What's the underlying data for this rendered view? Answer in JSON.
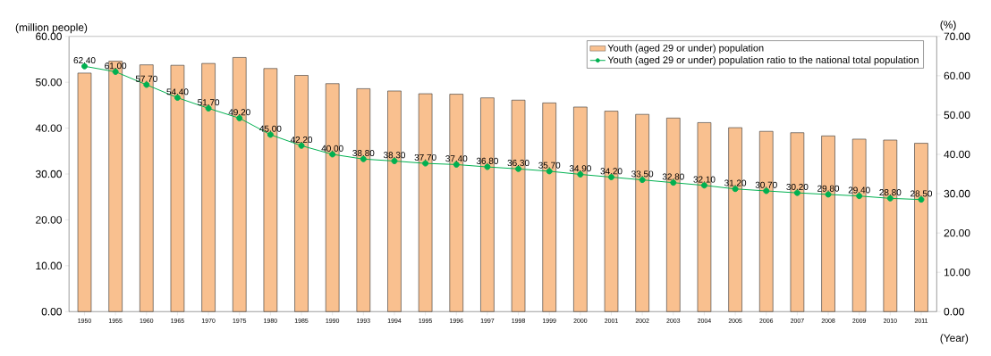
{
  "chart_data": {
    "type": "bar",
    "xlabel": "(Year)",
    "ylabel": "(million people)",
    "y2label": "(%)",
    "categories": [
      "1950",
      "1955",
      "1960",
      "1965",
      "1970",
      "1975",
      "1980",
      "1985",
      "1990",
      "1993",
      "1994",
      "1995",
      "1996",
      "1997",
      "1998",
      "1999",
      "2000",
      "2001",
      "2002",
      "2003",
      "2004",
      "2005",
      "2006",
      "2007",
      "2008",
      "2009",
      "2010",
      "2011"
    ],
    "series": [
      {
        "name": "Youth (aged 29 or under) population",
        "color": "#f9c08f",
        "values": [
          52.0,
          54.6,
          53.8,
          53.7,
          54.1,
          55.4,
          53.0,
          51.5,
          49.7,
          48.6,
          48.1,
          47.5,
          47.4,
          46.6,
          46.1,
          45.5,
          44.6,
          43.7,
          43.0,
          42.2,
          41.2,
          40.1,
          39.3,
          39.0,
          38.3,
          37.6,
          37.4,
          36.7
        ]
      },
      {
        "name": "Youth (aged 29 or under) population ratio to the national total population",
        "type": "line",
        "axis": "y2",
        "color": "#00b050",
        "marker": "circle",
        "values": [
          62.4,
          61.0,
          57.7,
          54.4,
          51.7,
          49.2,
          45.0,
          42.2,
          40.0,
          38.8,
          38.3,
          37.7,
          37.4,
          36.8,
          36.3,
          35.7,
          34.9,
          34.2,
          33.5,
          32.8,
          32.1,
          31.2,
          30.7,
          30.2,
          29.8,
          29.4,
          28.8,
          28.5
        ],
        "value_labels": [
          "62.40",
          "61.00",
          "57.70",
          "54.40",
          "51.70",
          "49.20",
          "45.00",
          "42.20",
          "40.00",
          "38.80",
          "38.30",
          "37.70",
          "37.40",
          "36.80",
          "36.30",
          "35.70",
          "34.90",
          "34.20",
          "33.50",
          "32.80",
          "32.10",
          "31.20",
          "30.70",
          "30.20",
          "29.80",
          "29.40",
          "28.80",
          "28.50"
        ]
      }
    ],
    "ylim": [
      0,
      60
    ],
    "yticks": [
      {
        "value": 0,
        "label": "0.00"
      },
      {
        "value": 10,
        "label": "10.00"
      },
      {
        "value": 20,
        "label": "20.00"
      },
      {
        "value": 30,
        "label": "30.00"
      },
      {
        "value": 40,
        "label": "40.00"
      },
      {
        "value": 50,
        "label": "50.00"
      },
      {
        "value": 60,
        "label": "60.00"
      }
    ],
    "y2lim": [
      0,
      70
    ],
    "y2ticks": [
      {
        "value": 0,
        "label": "0.00"
      },
      {
        "value": 10,
        "label": "10.00"
      },
      {
        "value": 20,
        "label": "20.00"
      },
      {
        "value": 30,
        "label": "30.00"
      },
      {
        "value": 40,
        "label": "40.00"
      },
      {
        "value": 50,
        "label": "50.00"
      },
      {
        "value": 60,
        "label": "60.00"
      },
      {
        "value": 70,
        "label": "70.00"
      }
    ],
    "legend": "top right"
  }
}
